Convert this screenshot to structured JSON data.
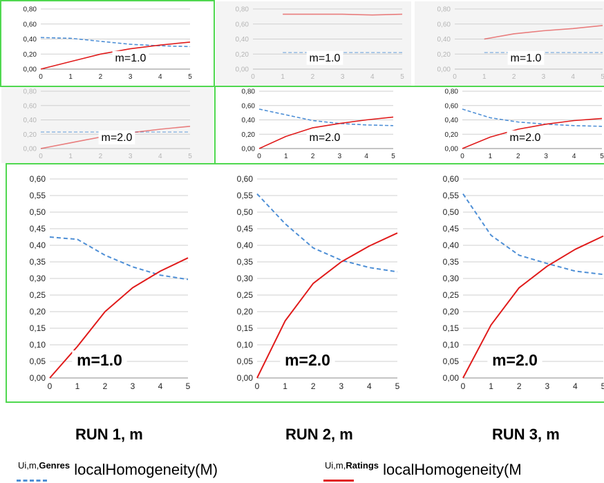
{
  "colors": {
    "genres": "#4e8fd6",
    "ratings": "#e01b1b",
    "frame": "#4fd84f",
    "grid": "#cfcfcf",
    "shaded_bg": "#f4f4f4"
  },
  "run_labels": [
    "RUN 1, m",
    "RUN 2, m",
    "RUN 3, m"
  ],
  "legend": {
    "genres": {
      "sub_prefix": "Ui,m,",
      "sub_bold": "Genres",
      "text": "localHomogeneity(M)"
    },
    "ratings": {
      "sub_prefix": "Ui,m,",
      "sub_bold": "Ratings",
      "text": "localHomogeneity(M"
    }
  },
  "chart_data": [
    {
      "type": "line",
      "panel": "top-row-1",
      "label": "m=1.0",
      "faded": false,
      "x": [
        0,
        1,
        2,
        3,
        4,
        5
      ],
      "xticks": [
        "0",
        "1",
        "2",
        "3",
        "4",
        "5"
      ],
      "ylim": [
        0,
        0.8
      ],
      "yticks": [
        "0,00",
        "0,20",
        "0,40",
        "0,60",
        "0,80"
      ],
      "series": [
        {
          "key": "genres",
          "x": [
            0,
            1,
            2,
            3,
            4,
            5
          ],
          "values": [
            0.42,
            0.41,
            0.37,
            0.33,
            0.31,
            0.3
          ]
        },
        {
          "key": "ratings",
          "x": [
            0,
            1,
            2,
            3,
            4,
            5
          ],
          "values": [
            0.0,
            0.1,
            0.2,
            0.27,
            0.32,
            0.36
          ]
        }
      ]
    },
    {
      "type": "line",
      "panel": "top-row-2",
      "label": "m=1.0",
      "faded": true,
      "x": [
        0,
        1,
        2,
        3,
        4,
        5
      ],
      "xticks": [
        "0",
        "1",
        "2",
        "3",
        "4",
        "5"
      ],
      "ylim": [
        0,
        0.8
      ],
      "yticks": [
        "0,00",
        "0,20",
        "0,40",
        "0,60",
        "0,80"
      ],
      "series": [
        {
          "key": "genres",
          "x": [
            1,
            2,
            3,
            4,
            5
          ],
          "values": [
            0.22,
            0.22,
            0.22,
            0.22,
            0.22
          ]
        },
        {
          "key": "ratings",
          "x": [
            1,
            2,
            3,
            4,
            5
          ],
          "values": [
            0.73,
            0.73,
            0.73,
            0.72,
            0.73
          ]
        }
      ]
    },
    {
      "type": "line",
      "panel": "top-row-3",
      "label": "m=1.0",
      "faded": true,
      "x": [
        0,
        1,
        2,
        3,
        4,
        5
      ],
      "xticks": [
        "0",
        "1",
        "2",
        "3",
        "4",
        "5"
      ],
      "ylim": [
        0,
        0.8
      ],
      "yticks": [
        "0,00",
        "0,20",
        "0,40",
        "0,60",
        "0,80"
      ],
      "series": [
        {
          "key": "genres",
          "x": [
            1,
            2,
            3,
            4,
            5
          ],
          "values": [
            0.22,
            0.22,
            0.22,
            0.22,
            0.22
          ]
        },
        {
          "key": "ratings",
          "x": [
            1,
            2,
            3,
            4,
            5
          ],
          "values": [
            0.4,
            0.47,
            0.51,
            0.54,
            0.58
          ]
        }
      ]
    },
    {
      "type": "line",
      "panel": "middle-row-1",
      "label": "m=2.0",
      "faded": true,
      "x": [
        0,
        1,
        2,
        3,
        4,
        5
      ],
      "xticks": [
        "0",
        "1",
        "2",
        "3",
        "4",
        "5"
      ],
      "ylim": [
        0,
        0.8
      ],
      "yticks": [
        "0,00",
        "0,20",
        "0,40",
        "0,60",
        "0,80"
      ],
      "series": [
        {
          "key": "genres",
          "x": [
            0,
            1,
            2,
            3,
            4,
            5
          ],
          "values": [
            0.23,
            0.23,
            0.23,
            0.23,
            0.23,
            0.23
          ]
        },
        {
          "key": "ratings",
          "x": [
            0,
            1,
            2,
            3,
            4,
            5
          ],
          "values": [
            0.0,
            0.08,
            0.16,
            0.22,
            0.27,
            0.31
          ]
        }
      ]
    },
    {
      "type": "line",
      "panel": "middle-row-2",
      "label": "m=2.0",
      "faded": false,
      "x": [
        0,
        1,
        2,
        3,
        4,
        5
      ],
      "xticks": [
        "0",
        "1",
        "2",
        "3",
        "4",
        "5"
      ],
      "ylim": [
        0,
        0.8
      ],
      "yticks": [
        "0,00",
        "0,20",
        "0,40",
        "0,60",
        "0,80"
      ],
      "series": [
        {
          "key": "genres",
          "x": [
            0,
            1,
            2,
            3,
            4,
            5
          ],
          "values": [
            0.55,
            0.47,
            0.39,
            0.35,
            0.33,
            0.32
          ]
        },
        {
          "key": "ratings",
          "x": [
            0,
            1,
            2,
            3,
            4,
            5
          ],
          "values": [
            0.0,
            0.17,
            0.29,
            0.35,
            0.4,
            0.44
          ]
        }
      ]
    },
    {
      "type": "line",
      "panel": "middle-row-3",
      "label": "m=2.0",
      "faded": false,
      "x": [
        0,
        1,
        2,
        3,
        4,
        5
      ],
      "xticks": [
        "0",
        "1",
        "2",
        "3",
        "4",
        "5"
      ],
      "ylim": [
        0,
        0.8
      ],
      "yticks": [
        "0,00",
        "0,20",
        "0,40",
        "0,60",
        "0,80"
      ],
      "series": [
        {
          "key": "genres",
          "x": [
            0,
            1,
            2,
            3,
            4,
            5
          ],
          "values": [
            0.55,
            0.43,
            0.37,
            0.34,
            0.32,
            0.31
          ]
        },
        {
          "key": "ratings",
          "x": [
            0,
            1,
            2,
            3,
            4,
            5
          ],
          "values": [
            0.0,
            0.16,
            0.27,
            0.34,
            0.39,
            0.42
          ]
        }
      ]
    },
    {
      "type": "line",
      "panel": "bottom-row-1",
      "label": "m=1.0",
      "faded": false,
      "x": [
        0,
        1,
        2,
        3,
        4,
        5
      ],
      "xticks": [
        "0",
        "1",
        "2",
        "3",
        "4",
        "5"
      ],
      "ylim": [
        0,
        0.6
      ],
      "yticks": [
        "0,00",
        "0,05",
        "0,10",
        "0,15",
        "0,20",
        "0,25",
        "0,30",
        "0,35",
        "0,40",
        "0,45",
        "0,50",
        "0,55",
        "0,60"
      ],
      "series": [
        {
          "key": "genres",
          "x": [
            0,
            1,
            2,
            3,
            4,
            5
          ],
          "values": [
            0.425,
            0.418,
            0.37,
            0.335,
            0.31,
            0.297
          ]
        },
        {
          "key": "ratings",
          "x": [
            0,
            1,
            2,
            3,
            4,
            5
          ],
          "values": [
            0.0,
            0.095,
            0.2,
            0.272,
            0.322,
            0.362
          ]
        }
      ]
    },
    {
      "type": "line",
      "panel": "bottom-row-2",
      "label": "m=2.0",
      "faded": false,
      "x": [
        0,
        1,
        2,
        3,
        4,
        5
      ],
      "xticks": [
        "0",
        "1",
        "2",
        "3",
        "4",
        "5"
      ],
      "ylim": [
        0,
        0.6
      ],
      "yticks": [
        "0,00",
        "0,05",
        "0,10",
        "0,15",
        "0,20",
        "0,25",
        "0,30",
        "0,35",
        "0,40",
        "0,45",
        "0,50",
        "0,55",
        "0,60"
      ],
      "series": [
        {
          "key": "genres",
          "x": [
            0,
            1,
            2,
            3,
            4,
            5
          ],
          "values": [
            0.555,
            0.465,
            0.392,
            0.355,
            0.333,
            0.32
          ]
        },
        {
          "key": "ratings",
          "x": [
            0,
            1,
            2,
            3,
            4,
            5
          ],
          "values": [
            0.0,
            0.172,
            0.285,
            0.35,
            0.398,
            0.437
          ]
        }
      ]
    },
    {
      "type": "line",
      "panel": "bottom-row-3",
      "label": "m=2.0",
      "faded": false,
      "x": [
        0,
        1,
        2,
        3,
        4,
        5
      ],
      "xticks": [
        "0",
        "1",
        "2",
        "3",
        "4",
        "5"
      ],
      "ylim": [
        0,
        0.6
      ],
      "yticks": [
        "0,00",
        "0,05",
        "0,10",
        "0,15",
        "0,20",
        "0,25",
        "0,30",
        "0,35",
        "0,40",
        "0,45",
        "0,50",
        "0,55",
        "0,60"
      ],
      "series": [
        {
          "key": "genres",
          "x": [
            0,
            1,
            2,
            3,
            4,
            5
          ],
          "values": [
            0.555,
            0.43,
            0.37,
            0.345,
            0.322,
            0.312
          ]
        },
        {
          "key": "ratings",
          "x": [
            0,
            1,
            2,
            3,
            4,
            5
          ],
          "values": [
            0.0,
            0.16,
            0.272,
            0.337,
            0.388,
            0.428
          ]
        }
      ]
    }
  ]
}
